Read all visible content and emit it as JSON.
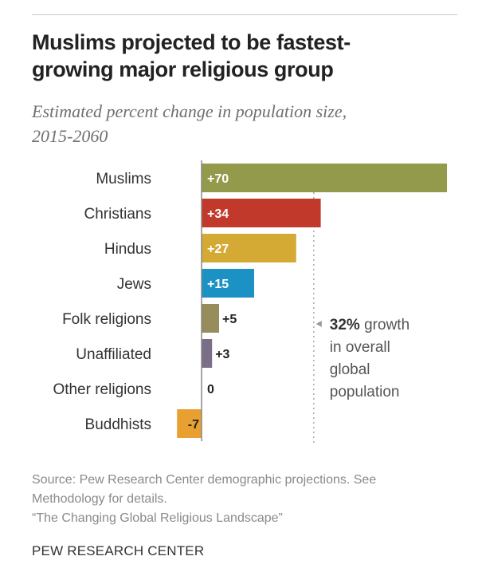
{
  "header": {
    "title_line1": "Muslims projected to be fastest-",
    "title_line2": "growing major religious group",
    "subtitle_line1": "Estimated percent change in population size,",
    "subtitle_line2": "2015-2060"
  },
  "chart_data": {
    "type": "bar",
    "orientation": "horizontal",
    "title": "Muslims projected to be fastest-growing major religious group",
    "subtitle": "Estimated percent change in population size, 2015-2060",
    "xlabel": "",
    "ylabel": "",
    "xlim": [
      -7,
      70
    ],
    "grid": false,
    "categories": [
      "Muslims",
      "Christians",
      "Hindus",
      "Jews",
      "Folk religions",
      "Unaffiliated",
      "Other religions",
      "Buddhists"
    ],
    "values": [
      70,
      34,
      27,
      15,
      5,
      3,
      0,
      -7
    ],
    "value_labels": [
      "+70",
      "+34",
      "+27",
      "+15",
      "+5",
      "+3",
      "0",
      "-7"
    ],
    "colors": [
      "#949a4c",
      "#c0392b",
      "#d4aa35",
      "#1c92c4",
      "#968c5c",
      "#7a6e88",
      "#999999",
      "#e8a030"
    ],
    "reference_line": {
      "value": 32,
      "style": "dotted",
      "annotation_bold": "32%",
      "annotation_lines": [
        " growth",
        "in overall",
        "global",
        "population"
      ]
    }
  },
  "footer": {
    "source_line1": "Source: Pew Research Center demographic projections. See",
    "source_line2": "Methodology for details.",
    "source_line3": "“The Changing Global Religious Landscape”",
    "brand": "PEW RESEARCH CENTER"
  }
}
